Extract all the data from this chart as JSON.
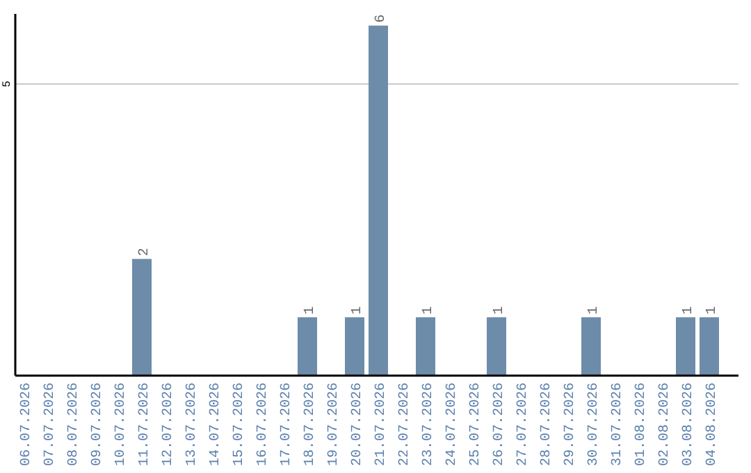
{
  "chart_data": {
    "type": "bar",
    "categories": [
      "06.07.2026",
      "07.07.2026",
      "08.07.2026",
      "09.07.2026",
      "10.07.2026",
      "11.07.2026",
      "12.07.2026",
      "13.07.2026",
      "14.07.2026",
      "15.07.2026",
      "16.07.2026",
      "17.07.2026",
      "18.07.2026",
      "19.07.2026",
      "20.07.2026",
      "21.07.2026",
      "22.07.2026",
      "23.07.2026",
      "24.07.2026",
      "25.07.2026",
      "26.07.2026",
      "27.07.2026",
      "28.07.2026",
      "29.07.2026",
      "30.07.2026",
      "31.07.2026",
      "01.08.2026",
      "02.08.2026",
      "03.08.2026",
      "04.08.2026"
    ],
    "values": [
      0,
      0,
      0,
      0,
      0,
      2,
      0,
      0,
      0,
      0,
      0,
      0,
      1,
      0,
      1,
      6,
      0,
      1,
      0,
      0,
      1,
      0,
      0,
      0,
      1,
      0,
      0,
      0,
      1,
      1
    ],
    "value_labels": [
      null,
      null,
      null,
      null,
      null,
      "2",
      null,
      null,
      null,
      null,
      null,
      null,
      "1",
      null,
      "1",
      "6",
      null,
      "1",
      null,
      null,
      "1",
      null,
      null,
      null,
      "1",
      null,
      null,
      null,
      "1",
      "1"
    ],
    "color": "#6d8caa",
    "ylim": [
      0,
      6.2
    ],
    "yticks": [
      5
    ],
    "grid": "y"
  }
}
